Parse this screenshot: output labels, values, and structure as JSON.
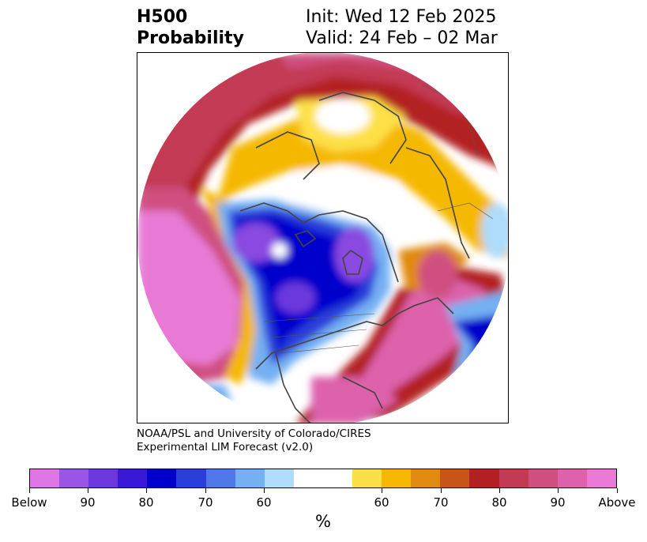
{
  "title": {
    "left_line1": "H500",
    "left_line2": "Probability",
    "right_line1": "Init: Wed 12 Feb 2025",
    "right_line2": "Valid: 24 Feb – 02 Mar"
  },
  "credit": {
    "line1": "NOAA/PSL and University of Colorado/CIRES",
    "line2": "Experimental LIM Forecast (v2.0)"
  },
  "colorbar": {
    "unit_label": "%",
    "colors": [
      "#dd77e8",
      "#9a55e4",
      "#6c38dd",
      "#3a18d8",
      "#0000cc",
      "#2a3fd9",
      "#4f78e8",
      "#74b0f2",
      "#aedcfa",
      "#ffffff",
      "#ffffff",
      "#fde047",
      "#f5b800",
      "#e08a10",
      "#c85518",
      "#b32024",
      "#c33a55",
      "#cf4f80",
      "#dd62ab",
      "#e87ad5"
    ],
    "tick_labels": [
      "Below",
      "90",
      "80",
      "70",
      "60",
      "60",
      "70",
      "80",
      "90",
      "Above"
    ]
  },
  "map": {
    "description_colors": {
      "below_strong": "#8a4ae0",
      "below_mid": "#0000cc",
      "above_strong": "#dd6bd8",
      "above_mid": "#b32024",
      "coast": "#444444"
    }
  }
}
